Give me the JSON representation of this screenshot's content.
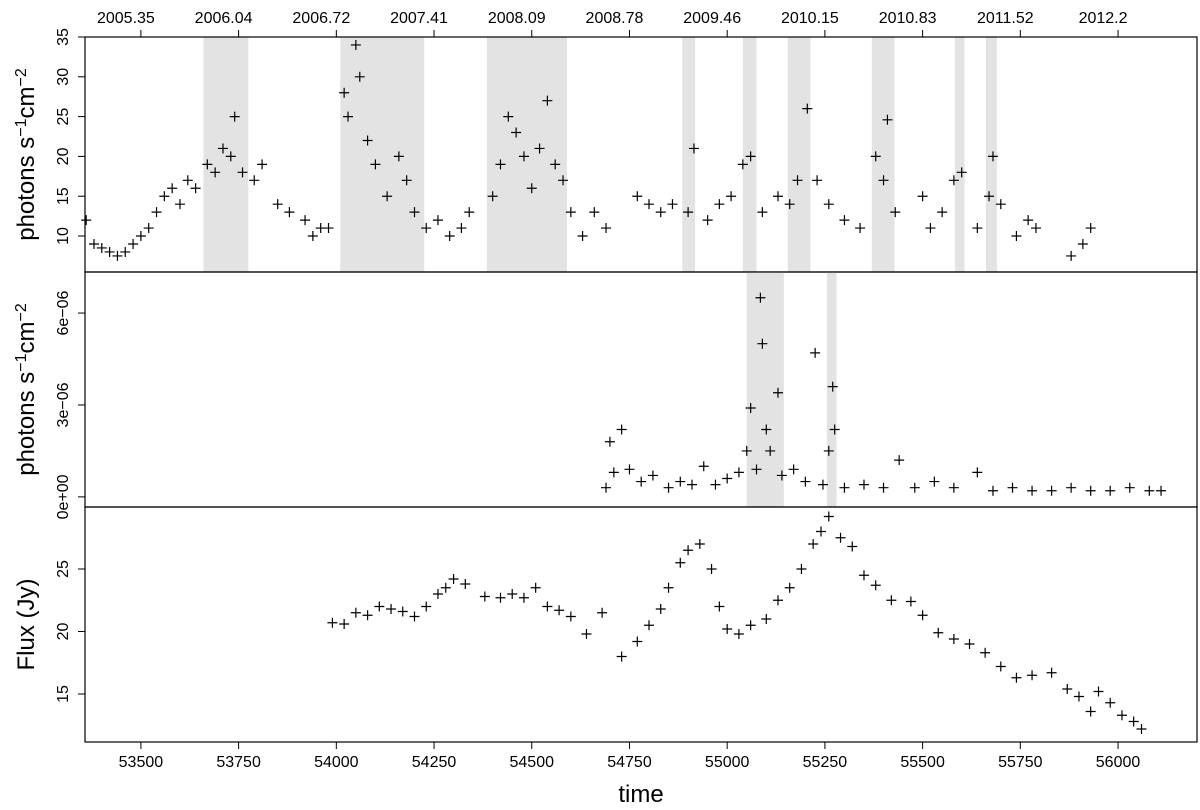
{
  "chart_data": [
    {
      "type": "scatter",
      "ylabel": [
        "photons s",
        "−1",
        "cm",
        "−2"
      ],
      "xlim": [
        53357,
        56202
      ],
      "ylim": [
        5.48,
        35
      ],
      "yticks": [
        10,
        15,
        20,
        25,
        30,
        35
      ],
      "x2ticks": [
        {
          "value": 53500,
          "label": "2005.35"
        },
        {
          "value": 53750,
          "label": "2006.04"
        },
        {
          "value": 54000,
          "label": "2006.72"
        },
        {
          "value": 54250,
          "label": "2007.41"
        },
        {
          "value": 54500,
          "label": "2008.09"
        },
        {
          "value": 54750,
          "label": "2008.78"
        },
        {
          "value": 55000,
          "label": "2009.46"
        },
        {
          "value": 55250,
          "label": "2010.15"
        },
        {
          "value": 55500,
          "label": "2010.83"
        },
        {
          "value": 55750,
          "label": "2011.52"
        },
        {
          "value": 56000,
          "label": "2012.2"
        }
      ],
      "bands": [
        [
          53660,
          53775
        ],
        [
          54010,
          54225
        ],
        [
          54385,
          54590
        ],
        [
          54885,
          54918
        ],
        [
          55040,
          55075
        ],
        [
          55155,
          55213
        ],
        [
          55370,
          55428
        ],
        [
          55583,
          55607
        ],
        [
          55662,
          55690
        ]
      ],
      "x": [
        53360,
        53380,
        53400,
        53420,
        53440,
        53460,
        53480,
        53500,
        53520,
        53540,
        53560,
        53580,
        53600,
        53620,
        53640,
        53670,
        53690,
        53710,
        53730,
        53740,
        53760,
        53790,
        53810,
        53850,
        53880,
        53920,
        53940,
        53960,
        53980,
        54020,
        54030,
        54050,
        54060,
        54080,
        54100,
        54130,
        54160,
        54180,
        54200,
        54230,
        54260,
        54290,
        54320,
        54340,
        54400,
        54420,
        54440,
        54460,
        54480,
        54500,
        54520,
        54540,
        54560,
        54580,
        54600,
        54630,
        54660,
        54690,
        54770,
        54800,
        54830,
        54860,
        54900,
        54915,
        54950,
        54980,
        55010,
        55040,
        55060,
        55090,
        55130,
        55160,
        55180,
        55205,
        55230,
        55260,
        55300,
        55340,
        55380,
        55400,
        55410,
        55430,
        55500,
        55520,
        55550,
        55580,
        55600,
        55640,
        55670,
        55680,
        55700,
        55740,
        55770,
        55790,
        55880,
        55910,
        55930
      ],
      "values": [
        12,
        9,
        8.5,
        8,
        7.5,
        8,
        9,
        10,
        11,
        13,
        15,
        16,
        14,
        17,
        16,
        19,
        18,
        21,
        20,
        25,
        18,
        17,
        19,
        14,
        13,
        12,
        10,
        11,
        11,
        28,
        25,
        34,
        30,
        22,
        19,
        15,
        20,
        17,
        13,
        11,
        12,
        10,
        11,
        13,
        15,
        19,
        25,
        23,
        20,
        16,
        21,
        27,
        19,
        17,
        13,
        10,
        13,
        11,
        15,
        14,
        13,
        14,
        13,
        21,
        12,
        14,
        15,
        19,
        20,
        13,
        15,
        14,
        17,
        26,
        17,
        14,
        12,
        11,
        20,
        17,
        24.6,
        13,
        15,
        11,
        13,
        17,
        18,
        11,
        15,
        20,
        14,
        10,
        12,
        11,
        7.5,
        9,
        11
      ]
    },
    {
      "type": "scatter",
      "ylabel": [
        "photons s",
        "−1",
        "cm",
        "−2"
      ],
      "xlim": [
        53357,
        56202
      ],
      "ylim": [
        -3.3e-07,
        7.34e-06
      ],
      "yticks": [
        {
          "value": 0,
          "label": "0e+00"
        },
        {
          "value": 3e-06,
          "label": "3e−06"
        },
        {
          "value": 6e-06,
          "label": "6e−06"
        }
      ],
      "bands": [
        [
          55050,
          55145
        ],
        [
          55255,
          55280
        ]
      ],
      "x": [
        54690,
        54700,
        54710,
        54730,
        54750,
        54780,
        54810,
        54850,
        54880,
        54910,
        54940,
        54970,
        55000,
        55030,
        55050,
        55060,
        55075,
        55085,
        55090,
        55100,
        55110,
        55130,
        55140,
        55170,
        55200,
        55225,
        55245,
        55260,
        55270,
        55275,
        55300,
        55350,
        55400,
        55440,
        55480,
        55530,
        55580,
        55640,
        55680,
        55730,
        55780,
        55830,
        55880,
        55930,
        55980,
        56030,
        56080,
        56110
      ],
      "values": [
        3e-07,
        1.8e-06,
        8e-07,
        2.2e-06,
        9e-07,
        5e-07,
        7e-07,
        3e-07,
        5e-07,
        4e-07,
        1e-06,
        4e-07,
        6e-07,
        8e-07,
        1.5e-06,
        2.9e-06,
        9e-07,
        6.5e-06,
        5e-06,
        2.2e-06,
        1.5e-06,
        3.4e-06,
        7e-07,
        9e-07,
        5e-07,
        4.7e-06,
        4e-07,
        1.5e-06,
        3.6e-06,
        2.2e-06,
        3e-07,
        4e-07,
        3e-07,
        1.2e-06,
        3e-07,
        5e-07,
        3e-07,
        8e-07,
        2e-07,
        3e-07,
        2e-07,
        2e-07,
        3e-07,
        2e-07,
        2e-07,
        3e-07,
        2e-07,
        2e-07
      ]
    },
    {
      "type": "scatter",
      "ylabel": [
        "Flux (Jy)"
      ],
      "xlabel": "time",
      "xlim": [
        53357,
        56202
      ],
      "ylim": [
        11.16,
        29.96
      ],
      "yticks": [
        15,
        20,
        25
      ],
      "xticks": [
        53500,
        53750,
        54000,
        54250,
        54500,
        54750,
        55000,
        55250,
        55500,
        55750,
        56000
      ],
      "x": [
        53990,
        54020,
        54050,
        54080,
        54110,
        54140,
        54170,
        54200,
        54230,
        54260,
        54280,
        54300,
        54330,
        54380,
        54420,
        54450,
        54480,
        54510,
        54540,
        54570,
        54600,
        54640,
        54680,
        54730,
        54770,
        54800,
        54830,
        54850,
        54880,
        54900,
        54930,
        54960,
        54980,
        55000,
        55030,
        55060,
        55100,
        55130,
        55160,
        55190,
        55220,
        55240,
        55260,
        55290,
        55320,
        55350,
        55380,
        55420,
        55470,
        55500,
        55540,
        55580,
        55620,
        55660,
        55700,
        55740,
        55780,
        55830,
        55870,
        55900,
        55930,
        55950,
        55980,
        56010,
        56040,
        56060
      ],
      "values": [
        20.7,
        20.6,
        21.5,
        21.3,
        22,
        21.8,
        21.6,
        21.2,
        22,
        23,
        23.5,
        24.2,
        23.8,
        22.8,
        22.7,
        23,
        22.7,
        23.5,
        22,
        21.7,
        21.2,
        19.8,
        21.5,
        18,
        19.2,
        20.5,
        21.8,
        23.5,
        25.5,
        26.5,
        27,
        25,
        22,
        20.2,
        19.8,
        20.5,
        21,
        22.5,
        23.5,
        25,
        27,
        28,
        29.2,
        27.5,
        26.8,
        24.5,
        23.7,
        22.5,
        22.4,
        21.3,
        19.9,
        19.4,
        19,
        18.3,
        17.2,
        16.3,
        16.5,
        16.7,
        15.4,
        14.8,
        13.6,
        15.2,
        14.3,
        13.3,
        12.8,
        12.2
      ]
    }
  ]
}
